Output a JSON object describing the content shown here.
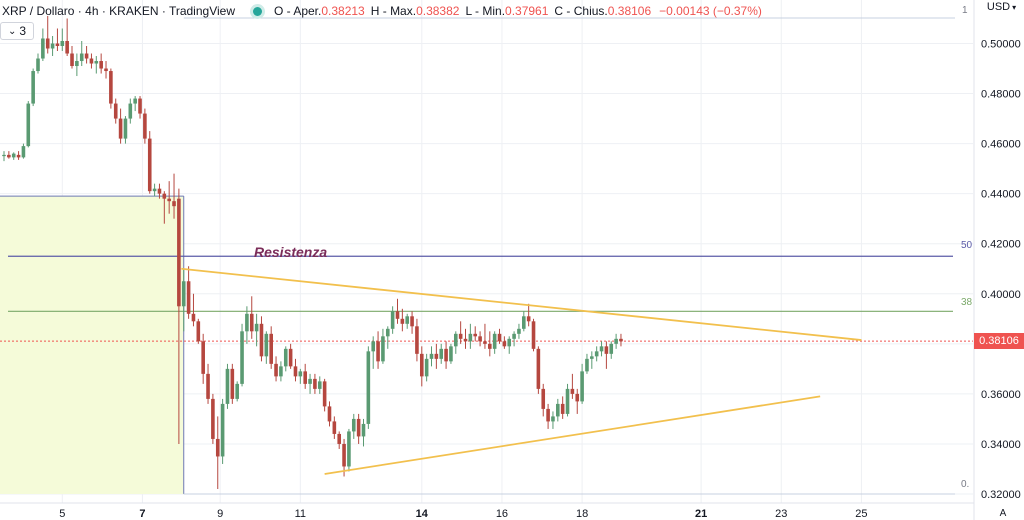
{
  "header": {
    "symbol": "XRP / Dollaro · 4h · KRAKEN · TradingView",
    "open_label": "O - Aper.",
    "open": "0.38213",
    "high_label": "H - Max.",
    "high": "0.38382",
    "low_label": "L - Min.",
    "low": "0.37961",
    "close_label": "C - Chius.",
    "close": "0.38106",
    "change": "−0.00143 (−0.37%)",
    "indicators_count": "3"
  },
  "currency_label": "USD",
  "auto_label": "A",
  "last_price_label": "0.38106",
  "colors": {
    "up": "#5a9a72",
    "down": "#b5473f",
    "triangle": "#f2c04d",
    "resistance": "#5b5ba8",
    "fib_green": "#7ba96a",
    "box_fill": "#f5fbd9",
    "box_border": "#6e79b5"
  },
  "annotations": {
    "resistance_label": "Resistenza",
    "fib_level_50": "50",
    "fib_level_38": "38",
    "fib_level_0": "0.",
    "fib_level_1": "1"
  },
  "chart_data": {
    "type": "candlestick",
    "title": "XRP / Dollaro · 4h · KRAKEN · TradingView",
    "y_ticks": [
      "0.50000",
      "0.48000",
      "0.46000",
      "0.44000",
      "0.42000",
      "0.40000",
      "0.38000",
      "0.36000",
      "0.34000",
      "0.32000"
    ],
    "y_tick_values": [
      0.5,
      0.48,
      0.46,
      0.44,
      0.42,
      0.4,
      0.38,
      0.36,
      0.34,
      0.32
    ],
    "ylim": [
      0.3187,
      0.5133
    ],
    "x_ticks": [
      {
        "label": "5",
        "index": 12,
        "bold": false
      },
      {
        "label": "7",
        "index": 28.5,
        "bold": true
      },
      {
        "label": "9",
        "index": 44.5,
        "bold": false
      },
      {
        "label": "11",
        "index": 61,
        "bold": false
      },
      {
        "label": "14",
        "index": 86,
        "bold": true
      },
      {
        "label": "16",
        "index": 102.5,
        "bold": false
      },
      {
        "label": "18",
        "index": 119,
        "bold": false
      },
      {
        "label": "21",
        "index": 143.5,
        "bold": true
      },
      {
        "label": "23",
        "index": 160,
        "bold": false
      },
      {
        "label": "25",
        "index": 176.5,
        "bold": false
      }
    ],
    "candles": [
      [
        0.455,
        0.457,
        0.453,
        0.4555
      ],
      [
        0.4555,
        0.457,
        0.454,
        0.4545
      ],
      [
        0.4545,
        0.4565,
        0.4535,
        0.456
      ],
      [
        0.4555,
        0.457,
        0.4535,
        0.4545
      ],
      [
        0.4545,
        0.46,
        0.454,
        0.459
      ],
      [
        0.459,
        0.477,
        0.4585,
        0.476
      ],
      [
        0.476,
        0.49,
        0.475,
        0.489
      ],
      [
        0.489,
        0.496,
        0.488,
        0.494
      ],
      [
        0.494,
        0.506,
        0.493,
        0.502
      ],
      [
        0.502,
        0.511,
        0.496,
        0.498
      ],
      [
        0.498,
        0.503,
        0.495,
        0.5
      ],
      [
        0.5,
        0.506,
        0.497,
        0.499
      ],
      [
        0.499,
        0.506,
        0.497,
        0.501
      ],
      [
        0.501,
        0.51,
        0.495,
        0.496
      ],
      [
        0.496,
        0.499,
        0.49,
        0.491
      ],
      [
        0.491,
        0.496,
        0.487,
        0.493
      ],
      [
        0.493,
        0.501,
        0.491,
        0.496
      ],
      [
        0.496,
        0.499,
        0.492,
        0.494
      ],
      [
        0.494,
        0.496,
        0.49,
        0.492
      ],
      [
        0.492,
        0.495,
        0.488,
        0.493
      ],
      [
        0.493,
        0.496,
        0.488,
        0.49
      ],
      [
        0.49,
        0.493,
        0.486,
        0.489
      ],
      [
        0.489,
        0.49,
        0.474,
        0.476
      ],
      [
        0.476,
        0.478,
        0.468,
        0.47
      ],
      [
        0.47,
        0.474,
        0.46,
        0.462
      ],
      [
        0.462,
        0.471,
        0.46,
        0.47
      ],
      [
        0.47,
        0.478,
        0.468,
        0.476
      ],
      [
        0.476,
        0.479,
        0.473,
        0.478
      ],
      [
        0.478,
        0.479,
        0.47,
        0.472
      ],
      [
        0.472,
        0.474,
        0.46,
        0.462
      ],
      [
        0.462,
        0.465,
        0.44,
        0.441
      ],
      [
        0.441,
        0.444,
        0.439,
        0.442
      ],
      [
        0.442,
        0.444,
        0.438,
        0.44
      ],
      [
        0.44,
        0.441,
        0.428,
        0.438
      ],
      [
        0.438,
        0.445,
        0.432,
        0.437
      ],
      [
        0.437,
        0.448,
        0.43,
        0.435
      ],
      [
        0.438,
        0.442,
        0.34,
        0.395
      ],
      [
        0.395,
        0.41,
        0.385,
        0.405
      ],
      [
        0.405,
        0.411,
        0.39,
        0.392
      ],
      [
        0.392,
        0.4,
        0.387,
        0.389
      ],
      [
        0.389,
        0.39,
        0.38,
        0.381
      ],
      [
        0.381,
        0.384,
        0.364,
        0.368
      ],
      [
        0.368,
        0.372,
        0.356,
        0.358
      ],
      [
        0.358,
        0.36,
        0.34,
        0.342
      ],
      [
        0.342,
        0.351,
        0.322,
        0.335
      ],
      [
        0.335,
        0.358,
        0.332,
        0.356
      ],
      [
        0.356,
        0.372,
        0.354,
        0.37
      ],
      [
        0.37,
        0.372,
        0.356,
        0.358
      ],
      [
        0.358,
        0.365,
        0.357,
        0.364
      ],
      [
        0.364,
        0.388,
        0.363,
        0.385
      ],
      [
        0.385,
        0.395,
        0.38,
        0.392
      ],
      [
        0.392,
        0.399,
        0.382,
        0.385
      ],
      [
        0.385,
        0.392,
        0.379,
        0.388
      ],
      [
        0.388,
        0.391,
        0.373,
        0.375
      ],
      [
        0.375,
        0.385,
        0.372,
        0.384
      ],
      [
        0.384,
        0.387,
        0.37,
        0.372
      ],
      [
        0.372,
        0.375,
        0.365,
        0.367
      ],
      [
        0.367,
        0.373,
        0.365,
        0.371
      ],
      [
        0.371,
        0.379,
        0.369,
        0.378
      ],
      [
        0.378,
        0.38,
        0.37,
        0.371
      ],
      [
        0.371,
        0.374,
        0.365,
        0.367
      ],
      [
        0.367,
        0.37,
        0.364,
        0.369
      ],
      [
        0.369,
        0.372,
        0.362,
        0.364
      ],
      [
        0.364,
        0.368,
        0.36,
        0.366
      ],
      [
        0.366,
        0.368,
        0.36,
        0.362
      ],
      [
        0.362,
        0.367,
        0.36,
        0.365
      ],
      [
        0.365,
        0.366,
        0.353,
        0.355
      ],
      [
        0.355,
        0.357,
        0.347,
        0.349
      ],
      [
        0.349,
        0.351,
        0.342,
        0.344
      ],
      [
        0.344,
        0.345,
        0.338,
        0.34
      ],
      [
        0.34,
        0.342,
        0.327,
        0.331
      ],
      [
        0.331,
        0.346,
        0.329,
        0.345
      ],
      [
        0.345,
        0.352,
        0.342,
        0.35
      ],
      [
        0.35,
        0.352,
        0.34,
        0.343
      ],
      [
        0.343,
        0.35,
        0.339,
        0.348
      ],
      [
        0.348,
        0.379,
        0.346,
        0.377
      ],
      [
        0.377,
        0.383,
        0.37,
        0.381
      ],
      [
        0.381,
        0.385,
        0.37,
        0.373
      ],
      [
        0.373,
        0.386,
        0.372,
        0.383
      ],
      [
        0.383,
        0.387,
        0.378,
        0.386
      ],
      [
        0.386,
        0.395,
        0.384,
        0.393
      ],
      [
        0.393,
        0.398,
        0.388,
        0.39
      ],
      [
        0.39,
        0.394,
        0.385,
        0.388
      ],
      [
        0.388,
        0.392,
        0.386,
        0.391
      ],
      [
        0.391,
        0.393,
        0.384,
        0.387
      ],
      [
        0.387,
        0.39,
        0.373,
        0.376
      ],
      [
        0.376,
        0.379,
        0.363,
        0.367
      ],
      [
        0.367,
        0.376,
        0.365,
        0.374
      ],
      [
        0.374,
        0.379,
        0.371,
        0.376
      ],
      [
        0.376,
        0.38,
        0.37,
        0.374
      ],
      [
        0.374,
        0.38,
        0.372,
        0.378
      ],
      [
        0.378,
        0.381,
        0.37,
        0.373
      ],
      [
        0.373,
        0.38,
        0.372,
        0.379
      ],
      [
        0.379,
        0.385,
        0.376,
        0.384
      ],
      [
        0.384,
        0.389,
        0.38,
        0.382
      ],
      [
        0.382,
        0.386,
        0.378,
        0.381
      ],
      [
        0.381,
        0.388,
        0.378,
        0.384
      ],
      [
        0.384,
        0.387,
        0.381,
        0.383
      ],
      [
        0.383,
        0.385,
        0.379,
        0.381
      ],
      [
        0.381,
        0.388,
        0.378,
        0.38
      ],
      [
        0.38,
        0.385,
        0.375,
        0.378
      ],
      [
        0.378,
        0.385,
        0.376,
        0.384
      ],
      [
        0.384,
        0.386,
        0.38,
        0.381
      ],
      [
        0.381,
        0.383,
        0.378,
        0.379
      ],
      [
        0.379,
        0.383,
        0.376,
        0.382
      ],
      [
        0.382,
        0.385,
        0.379,
        0.384
      ],
      [
        0.384,
        0.388,
        0.382,
        0.386
      ],
      [
        0.386,
        0.393,
        0.385,
        0.391
      ],
      [
        0.391,
        0.396,
        0.387,
        0.389
      ],
      [
        0.389,
        0.39,
        0.377,
        0.378
      ],
      [
        0.378,
        0.379,
        0.36,
        0.362
      ],
      [
        0.362,
        0.364,
        0.351,
        0.354
      ],
      [
        0.354,
        0.356,
        0.346,
        0.349
      ],
      [
        0.349,
        0.353,
        0.346,
        0.351
      ],
      [
        0.351,
        0.358,
        0.349,
        0.356
      ],
      [
        0.356,
        0.359,
        0.35,
        0.352
      ],
      [
        0.352,
        0.364,
        0.351,
        0.362
      ],
      [
        0.362,
        0.368,
        0.358,
        0.36
      ],
      [
        0.36,
        0.362,
        0.352,
        0.357
      ],
      [
        0.357,
        0.372,
        0.356,
        0.369
      ],
      [
        0.369,
        0.376,
        0.368,
        0.374
      ],
      [
        0.374,
        0.377,
        0.37,
        0.375
      ],
      [
        0.375,
        0.379,
        0.373,
        0.377
      ],
      [
        0.377,
        0.381,
        0.375,
        0.379
      ],
      [
        0.379,
        0.381,
        0.37,
        0.376
      ],
      [
        0.376,
        0.381,
        0.374,
        0.38
      ],
      [
        0.38,
        0.384,
        0.378,
        0.382
      ],
      [
        0.382,
        0.384,
        0.379,
        0.381
      ]
    ],
    "trendlines": [
      {
        "name": "triangle-upper-line",
        "from": [
          36.5,
          0.41
        ],
        "to": [
          176.5,
          0.3815
        ]
      },
      {
        "name": "triangle-lower-line",
        "from": [
          66,
          0.328
        ],
        "to": [
          168,
          0.359
        ]
      }
    ],
    "resistance_level": 0.415,
    "fib_38_level": 0.393,
    "box": {
      "x0_index": -5,
      "x1_index": 37,
      "top": 0.439,
      "bottom": 0.32
    },
    "last_price": 0.38106
  }
}
